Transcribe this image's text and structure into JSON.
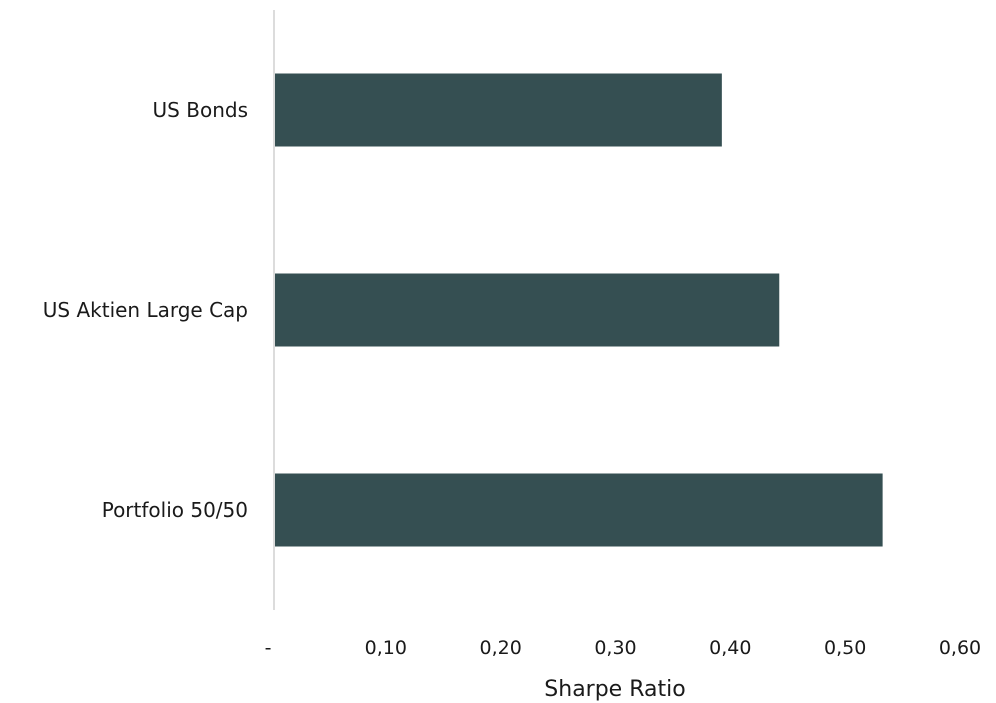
{
  "chart_data": {
    "type": "bar",
    "orientation": "horizontal",
    "categories": [
      "US Bonds",
      "US Aktien Large Cap",
      "Portfolio 50/50"
    ],
    "values": [
      0.39,
      0.44,
      0.53
    ],
    "xlabel": "Sharpe Ratio",
    "ylabel": "",
    "xlim": [
      0,
      0.6
    ],
    "xticks": [
      0,
      0.1,
      0.2,
      0.3,
      0.4,
      0.5,
      0.6
    ],
    "xtick_labels": [
      "-",
      "0,10",
      "0,20",
      "0,30",
      "0,40",
      "0,50",
      "0,60"
    ],
    "grid": false,
    "legend": "none",
    "bar_color": "#354f52",
    "axis_color": "#d0d0d0"
  }
}
